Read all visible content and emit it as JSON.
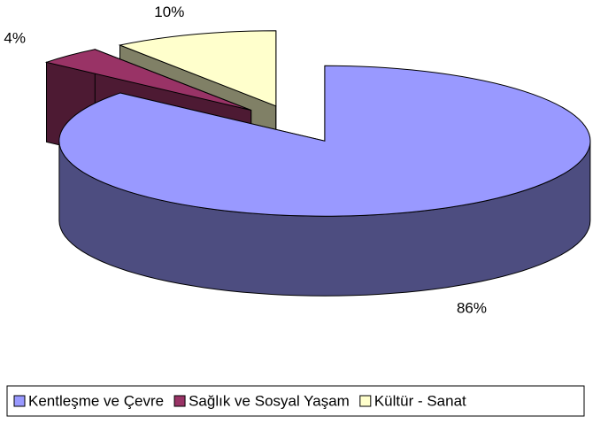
{
  "chart_data": {
    "type": "pie",
    "categories": [
      "Kentleşme ve Çevre",
      "Sağlık ve Sosyal Yaşam",
      "Kültür - Sanat"
    ],
    "values": [
      86,
      4,
      10
    ],
    "value_labels": [
      "86%",
      "4%",
      "10%"
    ],
    "colors": [
      "#9999ff",
      "#993366",
      "#ffffcc"
    ],
    "legend": "bottom"
  }
}
